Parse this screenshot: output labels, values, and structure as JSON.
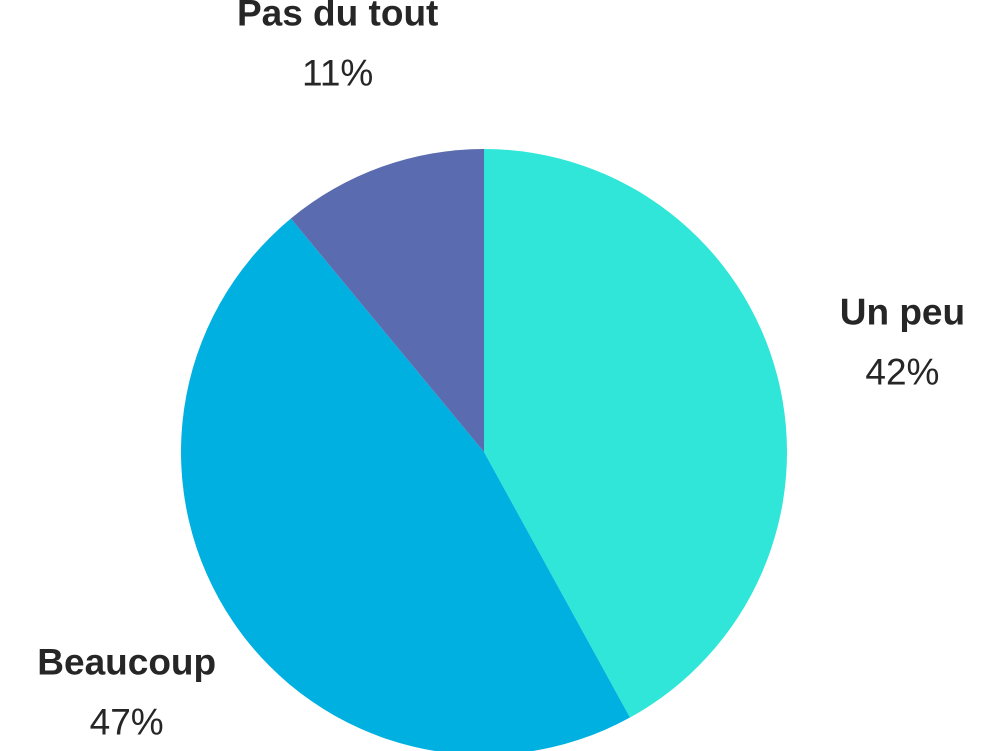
{
  "chart_data": {
    "type": "pie",
    "categories": [
      "Un peu",
      "Beaucoup",
      "Pas du tout"
    ],
    "values": [
      42,
      47,
      11
    ],
    "value_labels": [
      "42%",
      "47%",
      "11%"
    ],
    "colors": [
      "#30e6d8",
      "#00b0e0",
      "#5b6bb0"
    ]
  }
}
